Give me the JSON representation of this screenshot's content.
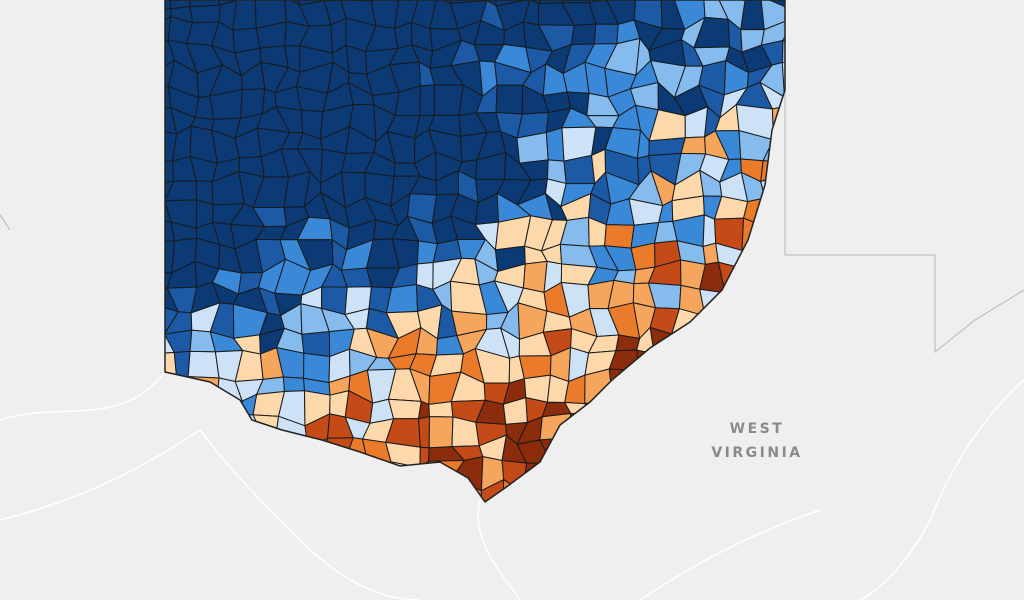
{
  "map": {
    "labels": [
      "WEST",
      "VIRGINIA"
    ]
  }
}
